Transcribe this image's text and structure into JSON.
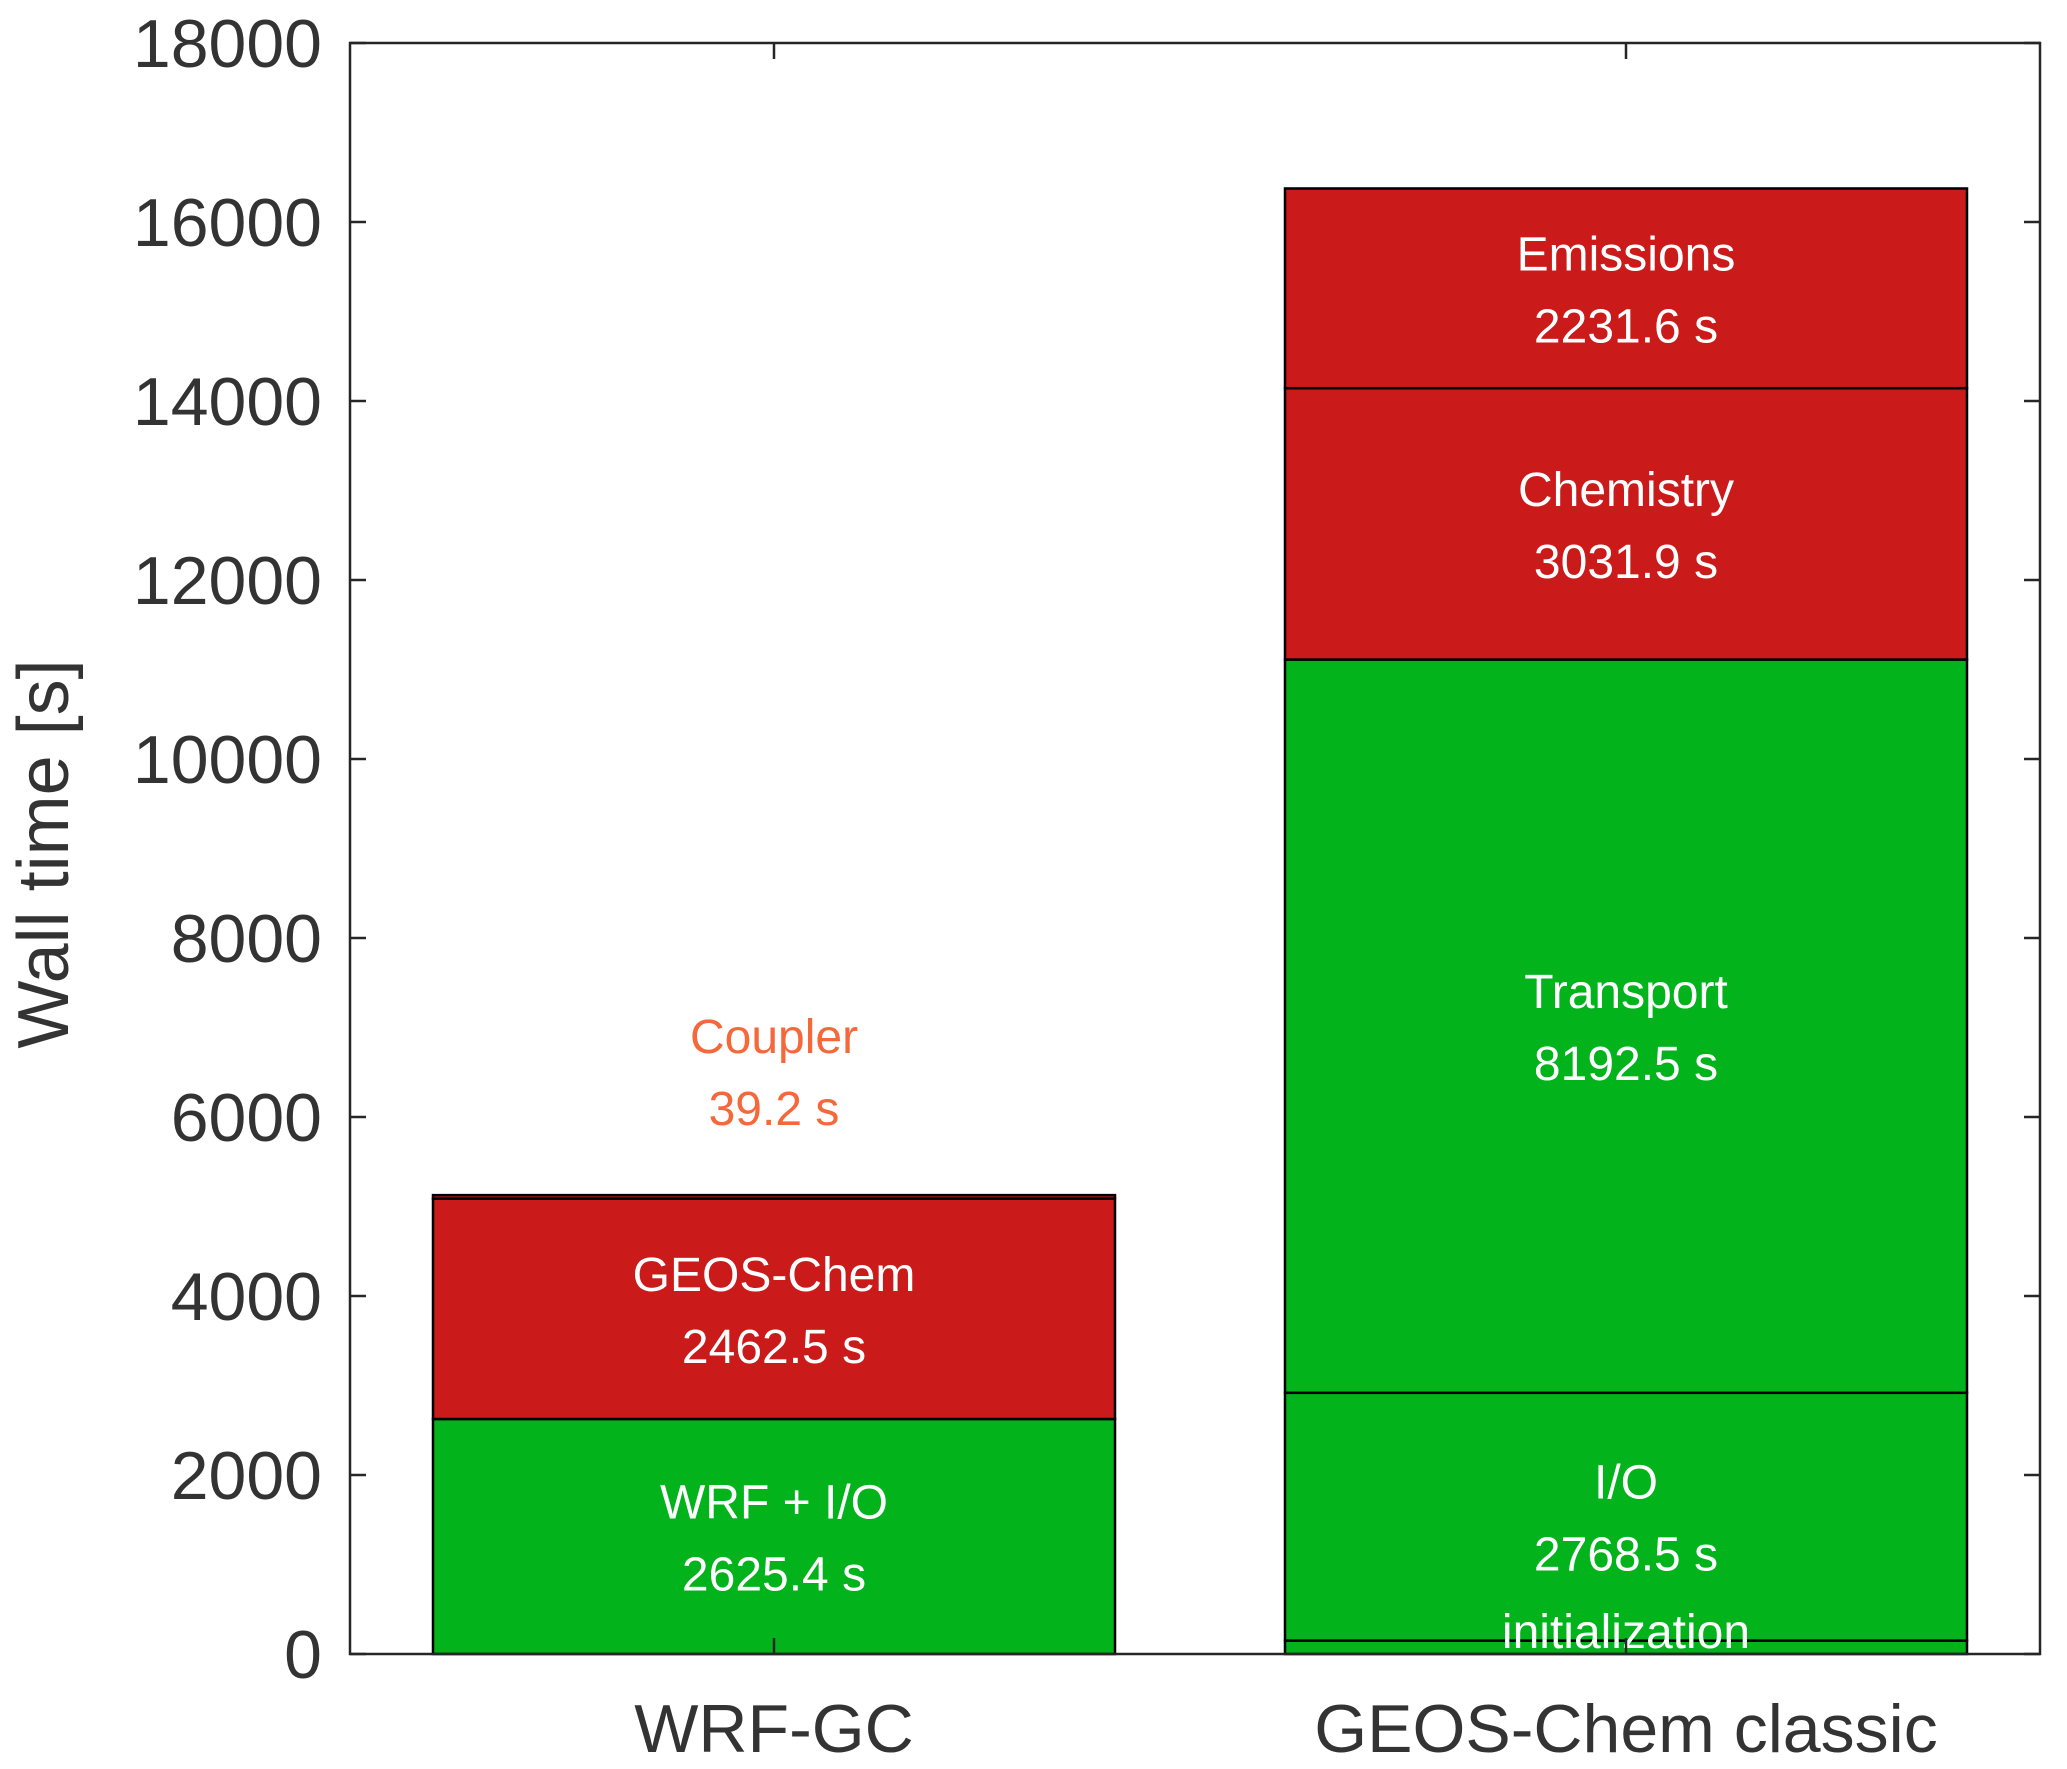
{
  "chart_data": {
    "type": "bar",
    "stacked": true,
    "title": "",
    "xlabel": "",
    "ylabel": "Wall time [s]",
    "ylim": [
      0,
      18000
    ],
    "yticks": [
      0,
      2000,
      4000,
      6000,
      8000,
      10000,
      12000,
      14000,
      16000,
      18000
    ],
    "grid": false,
    "legend": "none",
    "categories": [
      "WRF-GC",
      "GEOS-Chem classic"
    ],
    "colors": {
      "green": "#02b31c",
      "red": "#cb1a1a",
      "orange": "#f4683a",
      "edge": "#000000"
    },
    "bars": [
      {
        "category": "WRF-GC",
        "segments": [
          {
            "value": 2625.4,
            "color": "#02b31c",
            "name": "WRF + I/O",
            "value_label": "2625.4 s",
            "label_placement": "inside"
          },
          {
            "value": 2462.5,
            "color": "#cb1a1a",
            "name": "GEOS-Chem",
            "value_label": "2462.5 s",
            "label_placement": "inside"
          },
          {
            "value": 39.2,
            "color": "#cb1a1a",
            "name": "Coupler",
            "value_label": "39.2 s",
            "label_placement": "above",
            "label_color": "#f4683a"
          }
        ]
      },
      {
        "category": "GEOS-Chem classic",
        "segments": [
          {
            "value": 150,
            "color": "#02b31c",
            "name": "initialization",
            "value_label": "",
            "label_placement": "bottom"
          },
          {
            "value": 2768.5,
            "color": "#02b31c",
            "name": "I/O",
            "value_label": "2768.5 s",
            "label_placement": "inside"
          },
          {
            "value": 8192.5,
            "color": "#02b31c",
            "name": "Transport",
            "value_label": "8192.5 s",
            "label_placement": "inside"
          },
          {
            "value": 3031.9,
            "color": "#cb1a1a",
            "name": "Chemistry",
            "value_label": "3031.9 s",
            "label_placement": "inside"
          },
          {
            "value": 2231.6,
            "color": "#cb1a1a",
            "name": "Emissions",
            "value_label": "2231.6 s",
            "label_placement": "inside"
          }
        ]
      }
    ]
  }
}
